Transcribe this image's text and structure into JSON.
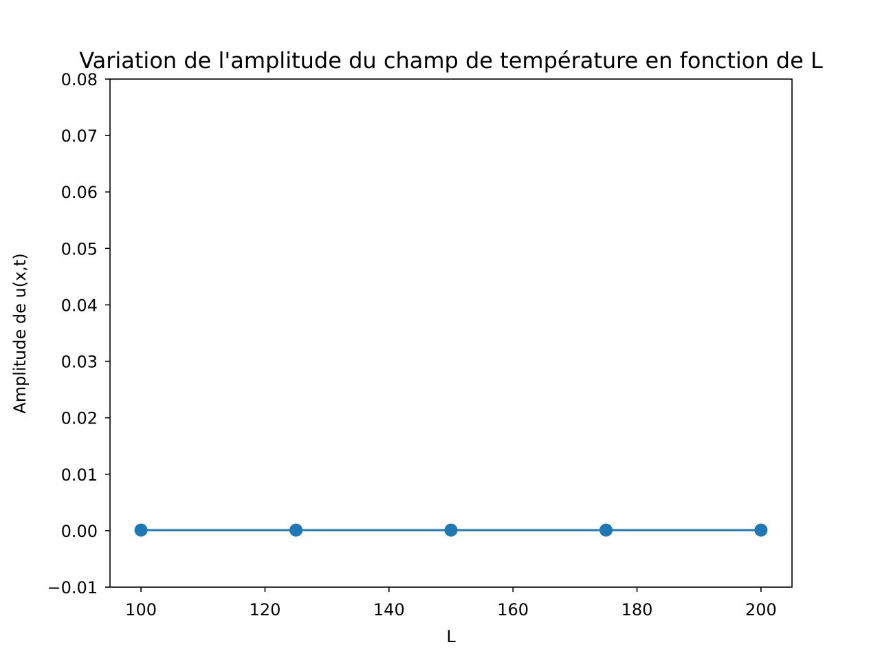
{
  "chart_data": {
    "type": "line",
    "title": "Variation de l'amplitude du champ de température en fonction de L",
    "xlabel": "L",
    "ylabel": "Amplitude de u(x,t)",
    "xlim": [
      95,
      205
    ],
    "ylim": [
      -0.01,
      0.08
    ],
    "xticks": [
      100,
      120,
      140,
      160,
      180,
      200
    ],
    "yticks": [
      -0.01,
      0.0,
      0.01,
      0.02,
      0.03,
      0.04,
      0.05,
      0.06,
      0.07,
      0.08
    ],
    "xtick_labels": [
      "100",
      "120",
      "140",
      "160",
      "180",
      "200"
    ],
    "ytick_labels": [
      "−0.01",
      "0.00",
      "0.01",
      "0.02",
      "0.03",
      "0.04",
      "0.05",
      "0.06",
      "0.07",
      "0.08"
    ],
    "grid": false,
    "series": [
      {
        "color": "#1f77b4",
        "marker": "circle",
        "x": [
          100,
          125,
          150,
          175,
          200
        ],
        "y": [
          0.0001,
          0.0001,
          0.0001,
          0.0001,
          0.0001
        ]
      }
    ]
  }
}
